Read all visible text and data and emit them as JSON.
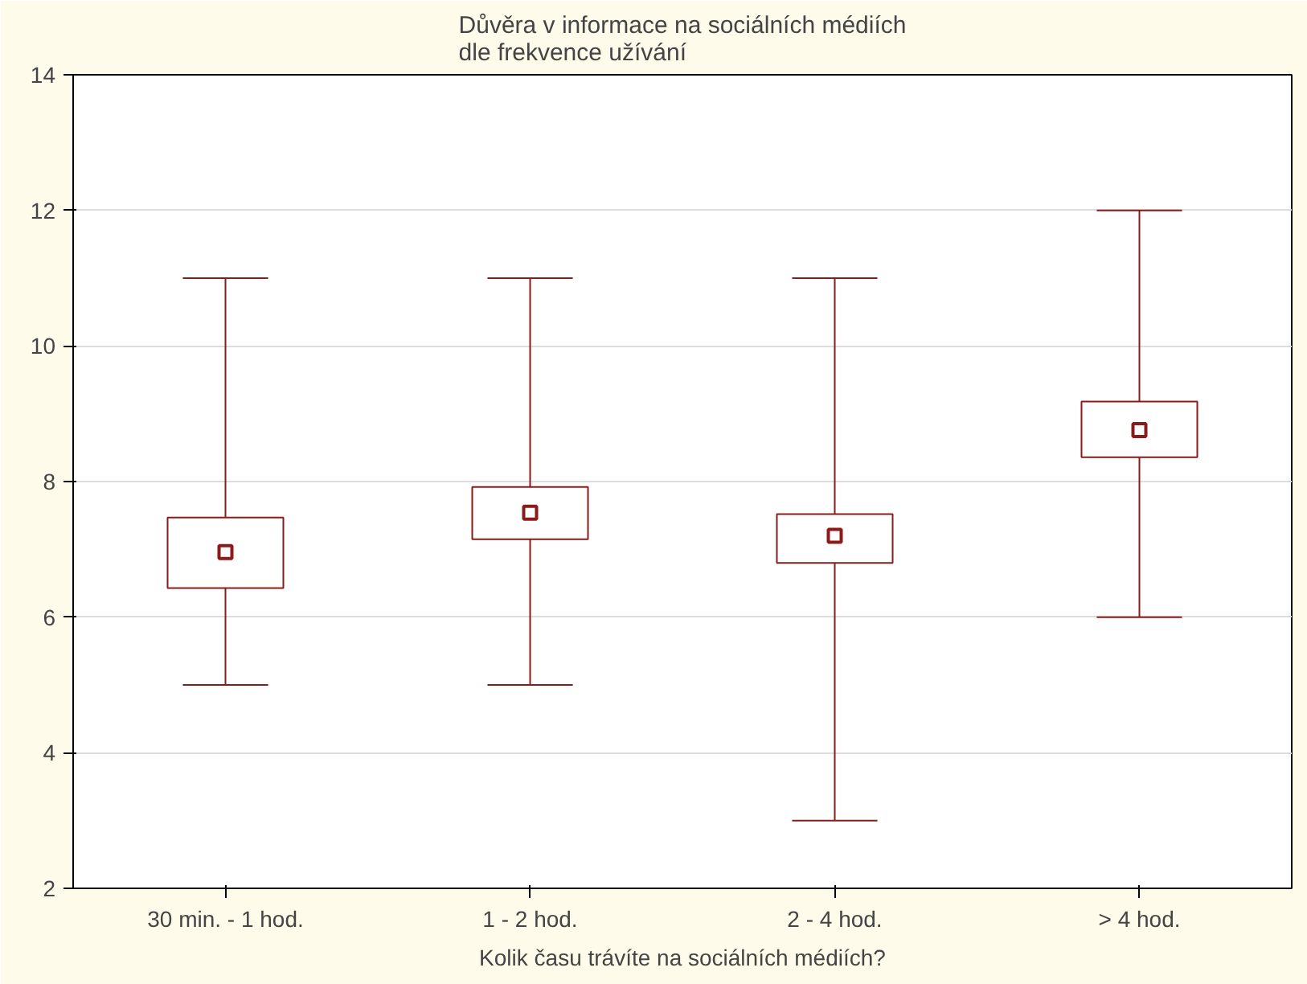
{
  "chart_data": {
    "type": "box",
    "title": "Důvěra v informace na sociálních médiích\ndle frekvence užívání",
    "xlabel": "Kolik času trávíte na sociálních médiích?",
    "categories": [
      "30 min. - 1 hod.",
      "1 - 2 hod.",
      "2 - 4 hod.",
      "> 4 hod."
    ],
    "color": "#8b1a1a",
    "marker": "square",
    "grid": "y",
    "boxes": [
      {
        "low": 5,
        "q1": 6.43,
        "median": 6.96,
        "q3": 7.47,
        "high": 11
      },
      {
        "low": 5,
        "q1": 7.15,
        "median": 7.54,
        "q3": 7.92,
        "high": 11
      },
      {
        "low": 3,
        "q1": 6.8,
        "median": 7.2,
        "q3": 7.52,
        "high": 11
      },
      {
        "low": 6,
        "q1": 8.36,
        "median": 8.76,
        "q3": 9.18,
        "high": 12
      }
    ],
    "ylim": [
      2,
      14
    ],
    "yticks": [
      2,
      4,
      6,
      8,
      10,
      12,
      14
    ]
  }
}
